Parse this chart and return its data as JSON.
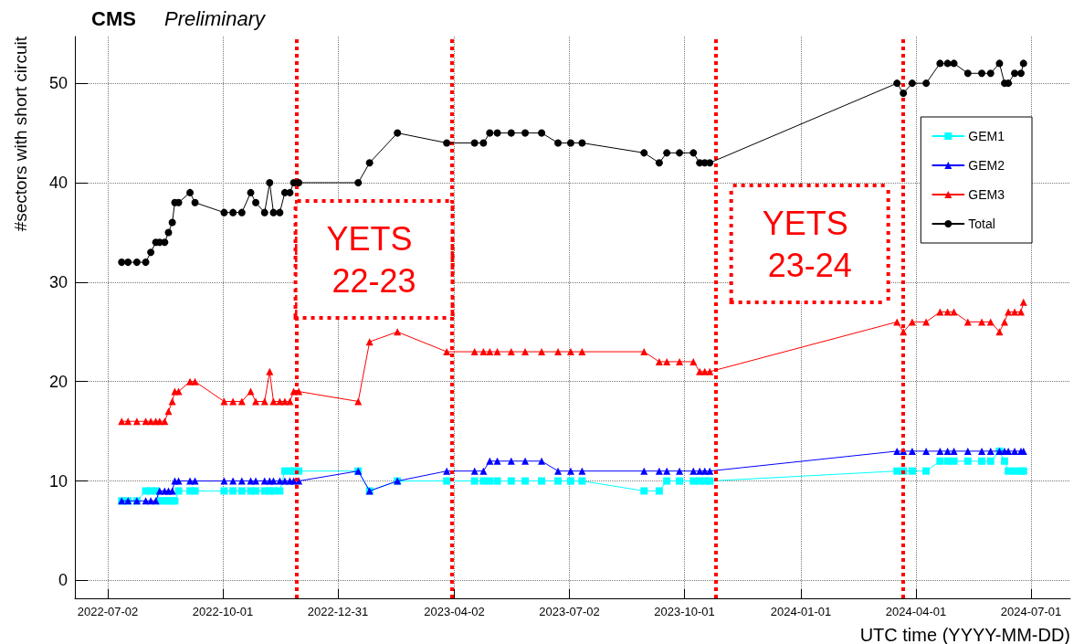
{
  "chart_data": {
    "type": "line",
    "title": "CMS",
    "subtitle": "Preliminary",
    "xlabel": "UTC time (YYYY-MM-DD)",
    "ylabel": "#sectors with short circuit",
    "x": [
      "2022-07-13",
      "2022-07-18",
      "2022-07-25",
      "2022-08-01",
      "2022-08-05",
      "2022-08-09",
      "2022-08-12",
      "2022-08-16",
      "2022-08-19",
      "2022-08-22",
      "2022-08-24",
      "2022-08-27",
      "2022-09-05",
      "2022-09-09",
      "2022-10-02",
      "2022-10-09",
      "2022-10-16",
      "2022-10-23",
      "2022-10-27",
      "2022-11-03",
      "2022-11-07",
      "2022-11-10",
      "2022-11-15",
      "2022-11-19",
      "2022-11-23",
      "2022-11-26",
      "2022-11-30",
      "2023-01-16",
      "2023-01-25",
      "2023-02-16",
      "2023-03-27",
      "2023-04-18",
      "2023-04-25",
      "2023-04-30",
      "2023-05-06",
      "2023-05-17",
      "2023-05-28",
      "2023-06-10",
      "2023-06-23",
      "2023-07-03",
      "2023-07-12",
      "2023-08-30",
      "2023-09-11",
      "2023-09-17",
      "2023-09-27",
      "2023-10-08",
      "2023-10-13",
      "2023-10-17",
      "2023-10-21",
      "2024-03-17",
      "2024-03-22",
      "2024-03-29",
      "2024-04-09",
      "2024-04-20",
      "2024-04-26",
      "2024-05-01",
      "2024-05-12",
      "2024-05-23",
      "2024-05-30",
      "2024-06-06",
      "2024-06-10",
      "2024-06-13",
      "2024-06-18",
      "2024-06-23",
      "2024-06-25"
    ],
    "series": [
      {
        "name": "GEM1",
        "color": "#00ffff",
        "marker": "square",
        "values": [
          8,
          8,
          8,
          9,
          9,
          9,
          8,
          8,
          8,
          8,
          8,
          9,
          9,
          9,
          9,
          9,
          9,
          9,
          9,
          9,
          9,
          9,
          9,
          11,
          11,
          11,
          11,
          11,
          9,
          10,
          10,
          10,
          10,
          10,
          10,
          10,
          10,
          10,
          10,
          10,
          10,
          9,
          9,
          10,
          10,
          10,
          10,
          10,
          10,
          11,
          11,
          11,
          11,
          12,
          12,
          12,
          12,
          12,
          12,
          13,
          12,
          11,
          11,
          11,
          11
        ]
      },
      {
        "name": "GEM2",
        "color": "#0000ff",
        "marker": "triangle",
        "values": [
          8,
          8,
          8,
          8,
          8,
          8,
          9,
          9,
          9,
          9,
          10,
          10,
          10,
          10,
          10,
          10,
          10,
          10,
          10,
          10,
          10,
          10,
          10,
          10,
          10,
          10,
          10,
          11,
          9,
          10,
          11,
          11,
          11,
          12,
          12,
          12,
          12,
          12,
          11,
          11,
          11,
          11,
          11,
          11,
          11,
          11,
          11,
          11,
          11,
          13,
          13,
          13,
          13,
          13,
          13,
          13,
          13,
          13,
          13,
          13,
          13,
          13,
          13,
          13,
          13
        ]
      },
      {
        "name": "GEM3",
        "color": "#ff0000",
        "marker": "triangle",
        "values": [
          16,
          16,
          16,
          16,
          16,
          16,
          16,
          16,
          17,
          18,
          19,
          19,
          20,
          20,
          18,
          18,
          18,
          19,
          18,
          18,
          21,
          18,
          18,
          18,
          18,
          19,
          19,
          18,
          24,
          25,
          23,
          23,
          23,
          23,
          23,
          23,
          23,
          23,
          23,
          23,
          23,
          23,
          22,
          22,
          22,
          22,
          21,
          21,
          21,
          26,
          25,
          26,
          26,
          27,
          27,
          27,
          26,
          26,
          26,
          25,
          26,
          27,
          27,
          27,
          28
        ]
      },
      {
        "name": "Total",
        "color": "#000000",
        "marker": "circle",
        "values": [
          32,
          32,
          32,
          32,
          33,
          34,
          34,
          34,
          35,
          36,
          38,
          38,
          39,
          38,
          37,
          37,
          37,
          39,
          38,
          37,
          40,
          37,
          37,
          39,
          39,
          40,
          40,
          40,
          42,
          45,
          44,
          44,
          44,
          45,
          45,
          45,
          45,
          45,
          44,
          44,
          44,
          43,
          42,
          43,
          43,
          43,
          42,
          42,
          42,
          50,
          49,
          50,
          50,
          52,
          52,
          52,
          51,
          51,
          51,
          52,
          50,
          50,
          51,
          51,
          52
        ]
      }
    ],
    "xlim": [
      "2022-06-06",
      "2024-08-01"
    ],
    "xticks": [
      "2022-07-02",
      "2022-10-01",
      "2022-12-31",
      "2023-04-02",
      "2023-07-02",
      "2023-10-01",
      "2024-01-01",
      "2024-04-01",
      "2024-07-01"
    ],
    "ylim": [
      -1.8,
      54.7
    ],
    "yticks": [
      0,
      10,
      20,
      30,
      40,
      50
    ],
    "grid": true,
    "legend": "top right",
    "line_style": "solid",
    "ref_lines": [
      {
        "axis": "x",
        "value": "2022-11-28",
        "color": "#ff0000",
        "line_style": "dotted"
      },
      {
        "axis": "x",
        "value": "2023-03-31",
        "color": "#ff0000",
        "line_style": "dotted"
      },
      {
        "axis": "x",
        "value": "2023-10-26",
        "color": "#ff0000",
        "line_style": "dotted"
      },
      {
        "axis": "x",
        "value": "2024-03-22",
        "color": "#ff0000",
        "line_style": "dotted"
      }
    ],
    "annotations": [
      "YETS 22-23",
      "YETS 23-24"
    ]
  }
}
